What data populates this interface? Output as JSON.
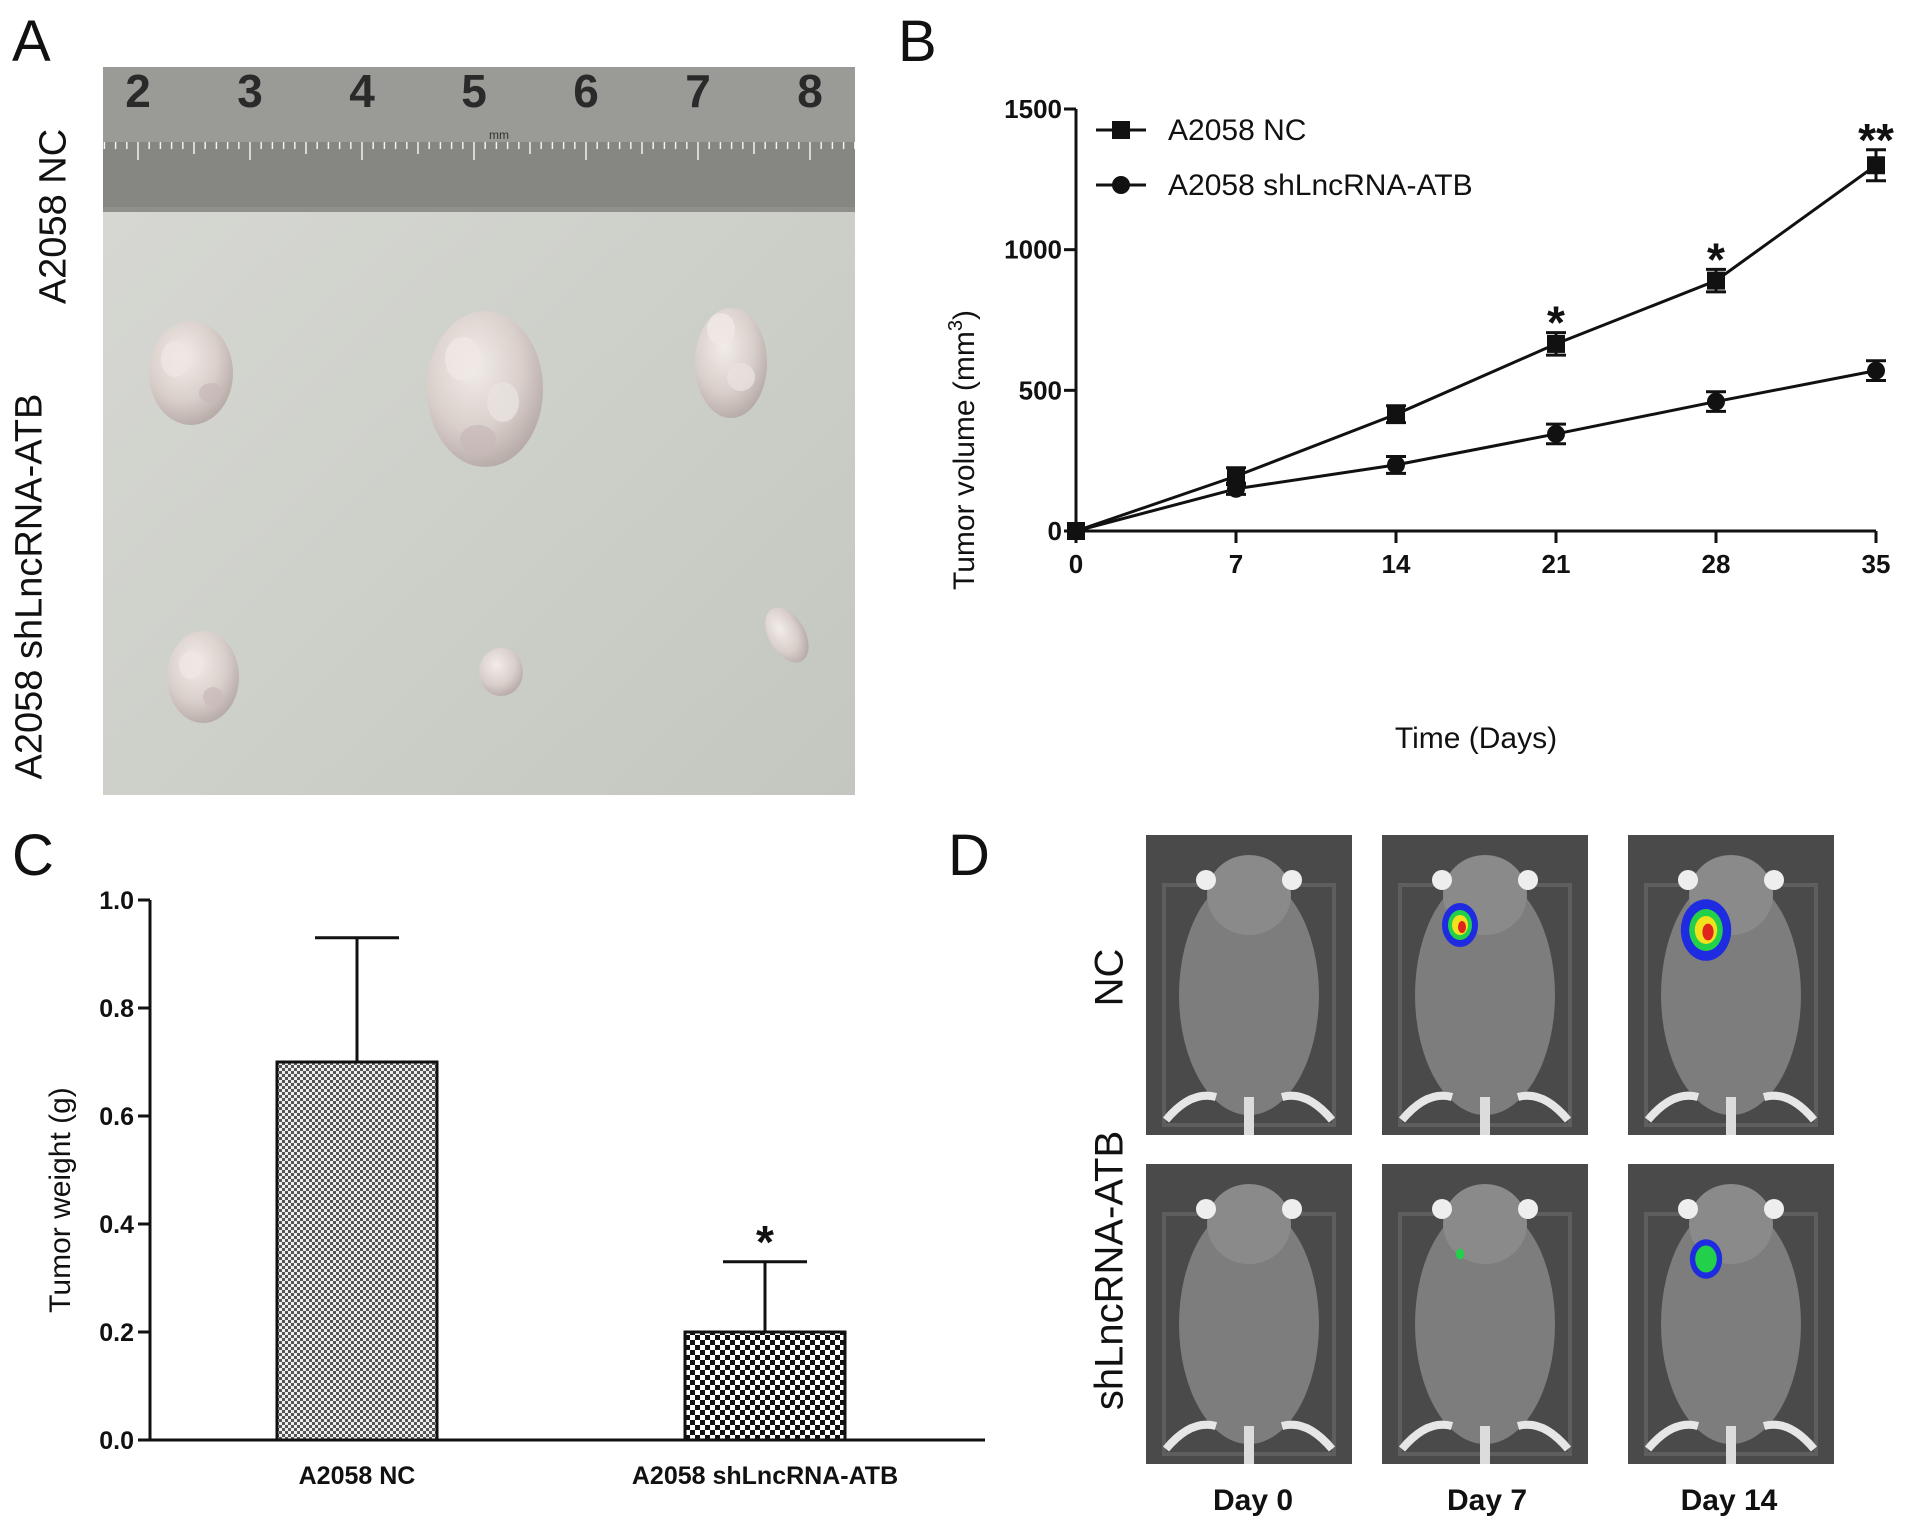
{
  "panels": {
    "a": {
      "letter": "A",
      "row_labels": [
        "A2058 NC",
        "A2058 shLncRNA-ATB"
      ],
      "ruler_numbers": [
        "2",
        "3",
        "4",
        "5",
        "6",
        "7",
        "8"
      ],
      "ruler_unit": "mm"
    },
    "b": {
      "letter": "B"
    },
    "c": {
      "letter": "C"
    },
    "d": {
      "letter": "D",
      "row_labels": [
        "NC",
        "shLncRNA-ATB"
      ],
      "columns": [
        "Day 0",
        "Day 7",
        "Day 14"
      ]
    }
  },
  "chart_data": [
    {
      "type": "line",
      "x": [
        0,
        7,
        14,
        21,
        28,
        35
      ],
      "xticks": [
        "0",
        "7",
        "14",
        "21",
        "28",
        "35"
      ],
      "yticks": [
        "0",
        "500",
        "1000",
        "1500"
      ],
      "xlabel": "Time (Days)",
      "ylabel": "Tumor volume (mm",
      "ylabel_sup": "3",
      "ylabel_close": ")",
      "xlim": [
        0,
        35
      ],
      "ylim": [
        0,
        1500
      ],
      "legend_position": "top-left",
      "series": [
        {
          "name": "A2058 NC",
          "marker": "square",
          "values": [
            0,
            195,
            415,
            665,
            890,
            1300
          ],
          "errors": [
            0,
            30,
            30,
            40,
            40,
            55
          ]
        },
        {
          "name": "A2058 shLncRNA-ATB",
          "marker": "circle",
          "values": [
            0,
            150,
            235,
            345,
            460,
            570
          ],
          "errors": [
            0,
            20,
            30,
            35,
            35,
            35
          ]
        }
      ],
      "annotations": [
        {
          "x": 21,
          "text": "*"
        },
        {
          "x": 28,
          "text": "*"
        },
        {
          "x": 35,
          "text": "**"
        }
      ]
    },
    {
      "type": "bar",
      "categories": [
        "A2058 NC",
        "A2058 shLncRNA-ATB"
      ],
      "values": [
        0.7,
        0.2
      ],
      "errors": [
        0.23,
        0.13
      ],
      "yticks": [
        "0.0",
        "0.2",
        "0.4",
        "0.6",
        "0.8",
        "1.0"
      ],
      "ylabel": "Tumor weight  (g)",
      "ylim": [
        0,
        1.0
      ],
      "annotations": [
        {
          "category": "A2058 shLncRNA-ATB",
          "text": "*"
        }
      ]
    }
  ]
}
